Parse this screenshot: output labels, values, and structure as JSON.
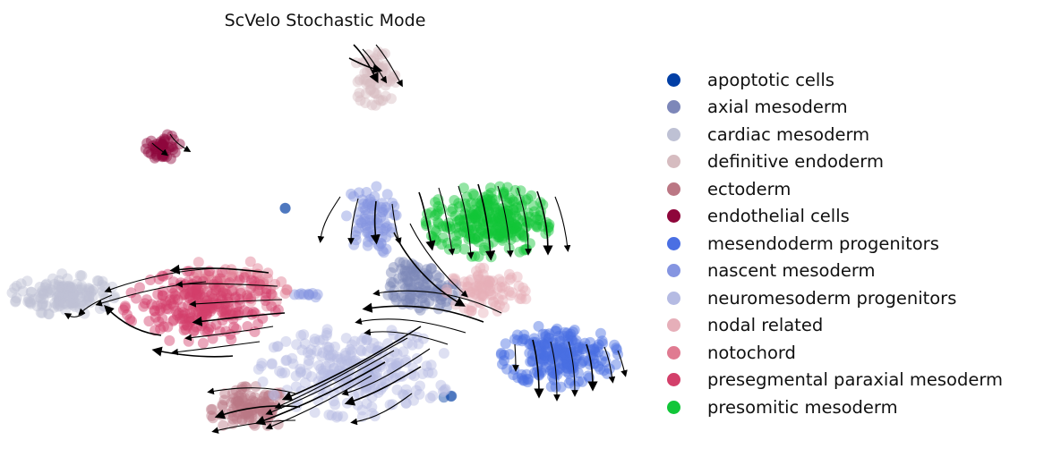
{
  "chart_data": {
    "type": "scatter",
    "title": "ScVelo Stochastic Mode",
    "xlabel": "",
    "ylabel": "",
    "axes_visible": false,
    "grid": false,
    "legend_position": "right",
    "overlay": "velocity streamlines with arrowheads",
    "series": [
      {
        "name": "apoptotic cells",
        "color": "#023fa5",
        "clusters": [
          {
            "cx": 0.57,
            "cy": 0.17,
            "rx": 0.008,
            "ry": 0.012,
            "n": 3
          },
          {
            "cx": 0.7,
            "cy": 0.12,
            "rx": 0.01,
            "ry": 0.008,
            "n": 3
          },
          {
            "cx": 0.44,
            "cy": 0.58,
            "rx": 0.008,
            "ry": 0.01,
            "n": 2
          }
        ]
      },
      {
        "name": "axial mesoderm",
        "color": "#7d87b9",
        "clusters": [
          {
            "cx": 0.66,
            "cy": 0.37,
            "rx": 0.06,
            "ry": 0.035,
            "n": 70
          },
          {
            "cx": 0.64,
            "cy": 0.42,
            "rx": 0.04,
            "ry": 0.03,
            "n": 40
          }
        ]
      },
      {
        "name": "cardiac mesoderm",
        "color": "#bec1d4",
        "clusters": [
          {
            "cx": 0.08,
            "cy": 0.37,
            "rx": 0.075,
            "ry": 0.045,
            "n": 150
          }
        ]
      },
      {
        "name": "definitive endoderm",
        "color": "#d6bcc0",
        "clusters": [
          {
            "cx": 0.58,
            "cy": 0.9,
            "rx": 0.035,
            "ry": 0.06,
            "n": 70
          }
        ]
      },
      {
        "name": "ectoderm",
        "color": "#bb7784",
        "clusters": [
          {
            "cx": 0.38,
            "cy": 0.09,
            "rx": 0.06,
            "ry": 0.05,
            "n": 110
          }
        ]
      },
      {
        "name": "endothelial cells",
        "color": "#8e063b",
        "clusters": [
          {
            "cx": 0.24,
            "cy": 0.73,
            "rx": 0.025,
            "ry": 0.03,
            "n": 45
          }
        ]
      },
      {
        "name": "mesendoderm progenitors",
        "color": "#4a6fe3",
        "clusters": [
          {
            "cx": 0.875,
            "cy": 0.22,
            "rx": 0.085,
            "ry": 0.07,
            "n": 230
          }
        ]
      },
      {
        "name": "nascent mesoderm",
        "color": "#8595e1",
        "clusters": [
          {
            "cx": 0.57,
            "cy": 0.55,
            "rx": 0.04,
            "ry": 0.08,
            "n": 80
          },
          {
            "cx": 0.47,
            "cy": 0.37,
            "rx": 0.02,
            "ry": 0.01,
            "n": 10
          }
        ]
      },
      {
        "name": "neuromesoderm progenitors",
        "color": "#b5bbe3",
        "clusters": [
          {
            "cx": 0.55,
            "cy": 0.18,
            "rx": 0.14,
            "ry": 0.1,
            "n": 260
          }
        ]
      },
      {
        "name": "nodal related",
        "color": "#e6afb9",
        "clusters": [
          {
            "cx": 0.76,
            "cy": 0.38,
            "rx": 0.06,
            "ry": 0.05,
            "n": 90
          }
        ]
      },
      {
        "name": "notochord",
        "color": "#e07b91",
        "clusters": [
          {
            "cx": 0.34,
            "cy": 0.39,
            "rx": 0.09,
            "ry": 0.06,
            "n": 90
          }
        ]
      },
      {
        "name": "presegmental paraxial mesoderm",
        "color": "#d33f6a",
        "clusters": [
          {
            "cx": 0.3,
            "cy": 0.34,
            "rx": 0.11,
            "ry": 0.08,
            "n": 220
          }
        ]
      },
      {
        "name": "presomitic mesoderm",
        "color": "#11c638",
        "clusters": [
          {
            "cx": 0.76,
            "cy": 0.55,
            "rx": 0.09,
            "ry": 0.08,
            "n": 280
          }
        ]
      }
    ]
  }
}
